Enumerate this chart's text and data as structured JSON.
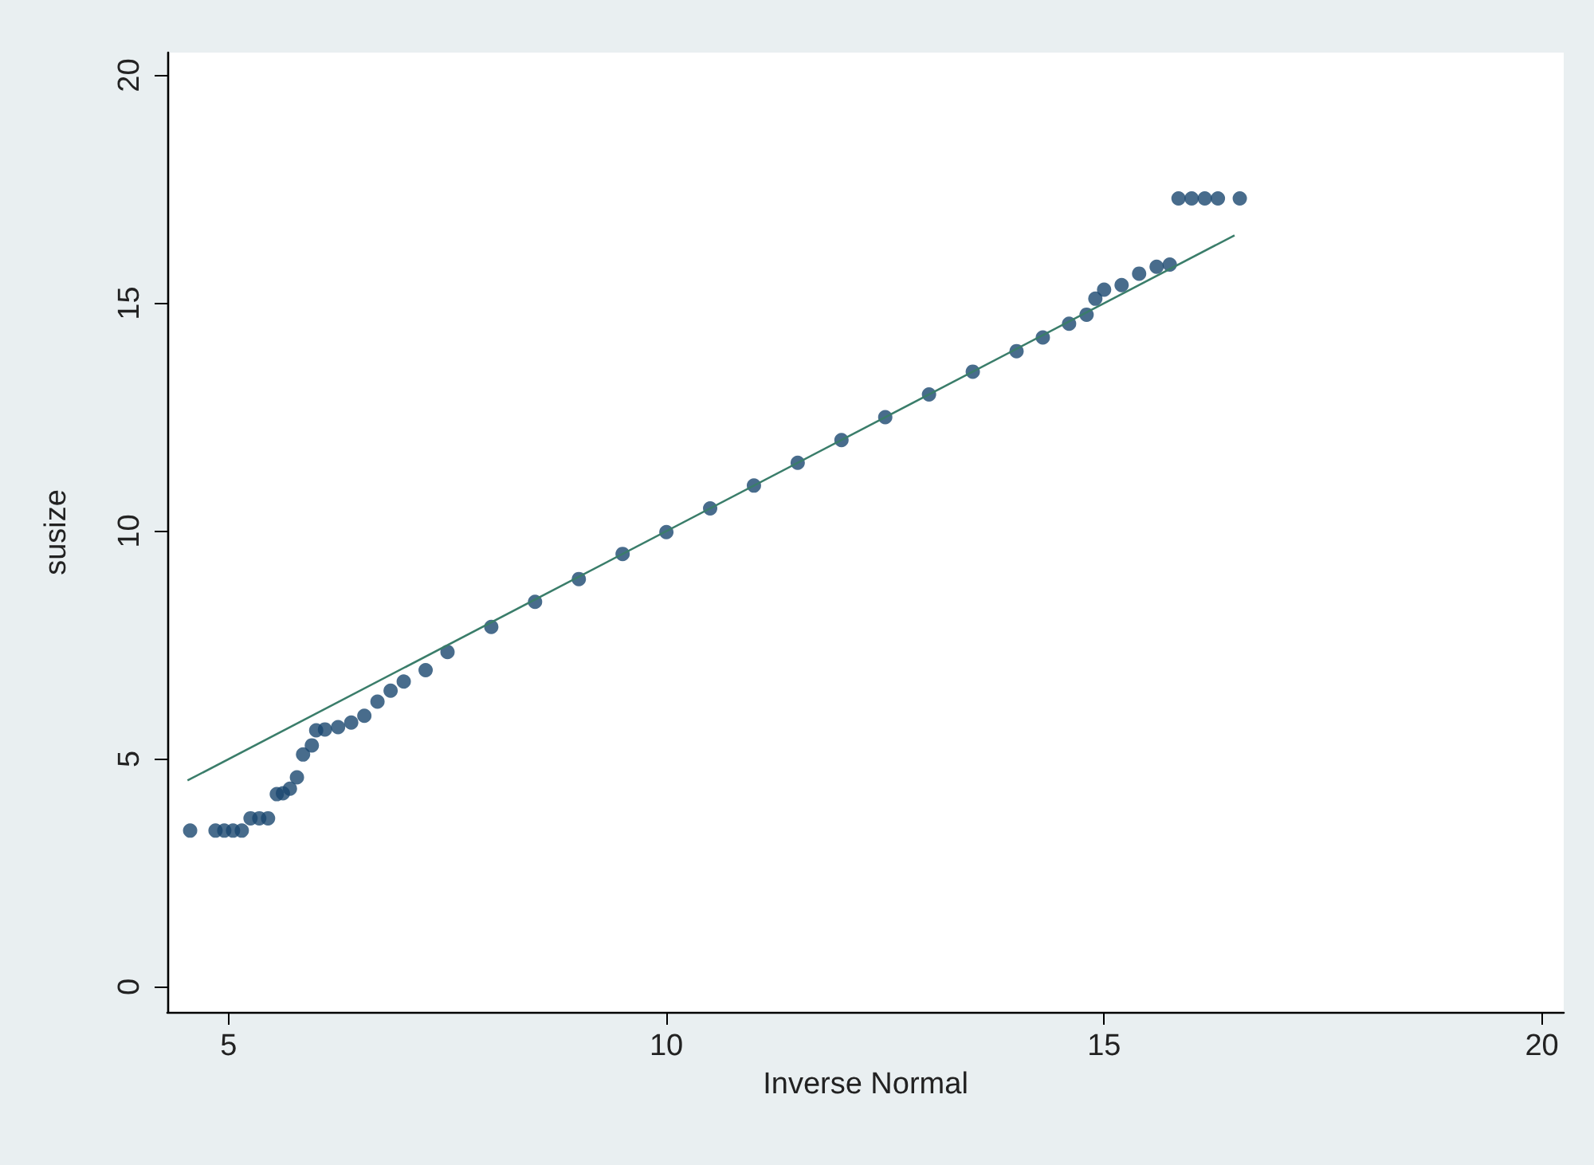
{
  "chart_data": {
    "type": "scatter",
    "xlabel": "Inverse Normal",
    "ylabel": "susize",
    "xlim": [
      4.3,
      20.25
    ],
    "ylim": [
      -0.55,
      20.5
    ],
    "xticks": [
      5,
      10,
      15,
      20
    ],
    "yticks": [
      0,
      5,
      10,
      15,
      20
    ],
    "grid": false,
    "marker": "circle",
    "series": [
      {
        "color": "#1a476f",
        "x": [
          4.56,
          4.85,
          4.95,
          5.05,
          5.15,
          5.25,
          5.35,
          5.45,
          5.55,
          5.62,
          5.7,
          5.78,
          5.85,
          5.95,
          6.0,
          6.1,
          6.25,
          6.4,
          6.55,
          6.7,
          6.85,
          7.0,
          7.25,
          7.5,
          8.0,
          8.5,
          9.0,
          9.5,
          10.0,
          10.5,
          11.0,
          11.5,
          12.0,
          12.5,
          13.0,
          13.5,
          14.0,
          14.3,
          14.6,
          14.8,
          14.9,
          15.0,
          15.2,
          15.4,
          15.6,
          15.75,
          15.85,
          16.0,
          16.15,
          16.3,
          16.55
        ],
        "values": [
          3.43,
          3.43,
          3.43,
          3.43,
          3.43,
          3.7,
          3.7,
          3.7,
          4.23,
          4.25,
          4.35,
          4.6,
          5.1,
          5.3,
          5.63,
          5.65,
          5.7,
          5.8,
          5.95,
          6.26,
          6.5,
          6.7,
          6.95,
          7.35,
          7.9,
          8.45,
          8.95,
          9.5,
          9.98,
          10.5,
          11.0,
          11.5,
          12.0,
          12.5,
          13.0,
          13.5,
          13.95,
          14.25,
          14.55,
          14.75,
          15.1,
          15.3,
          15.4,
          15.65,
          15.8,
          15.85,
          17.3,
          17.3,
          17.3,
          17.3,
          17.3
        ]
      },
      {
        "type": "line",
        "color": "#3a7d6a",
        "line_style": "solid",
        "marker": "none",
        "x": [
          4.53,
          16.49
        ],
        "values": [
          4.53,
          16.49
        ]
      }
    ]
  }
}
